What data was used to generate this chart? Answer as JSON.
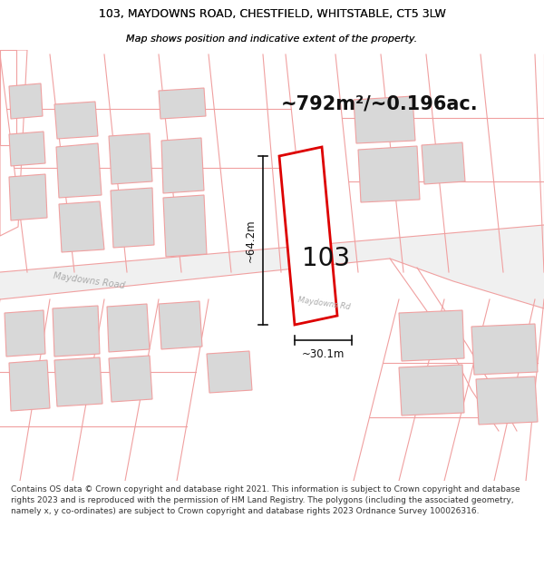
{
  "title_line1": "103, MAYDOWNS ROAD, CHESTFIELD, WHITSTABLE, CT5 3LW",
  "title_line2": "Map shows position and indicative extent of the property.",
  "area_text": "~792m²/~0.196ac.",
  "label_103": "103",
  "dim_height": "~64.2m",
  "dim_width": "~30.1m",
  "road_label": "Maydowns Road",
  "road_label2": "Maydowns Rd",
  "footer": "Contains OS data © Crown copyright and database right 2021. This information is subject to Crown copyright and database rights 2023 and is reproduced with the permission of HM Land Registry. The polygons (including the associated geometry, namely x, y co-ordinates) are subject to Crown copyright and database rights 2023 Ordnance Survey 100026316.",
  "bg_color": "#ffffff",
  "plot_line_color": "#dd0000",
  "map_line_color": "#f0a0a0",
  "building_color": "#d8d8d8",
  "dim_line_color": "#111111",
  "text_color": "#111111",
  "road_label_color": "#aaaaaa",
  "footer_color": "#333333",
  "area_fontsize": 15,
  "title1_fontsize": 9,
  "title2_fontsize": 8,
  "label103_fontsize": 20,
  "dim_fontsize": 8.5,
  "road_fontsize": 7,
  "footer_fontsize": 6.5
}
